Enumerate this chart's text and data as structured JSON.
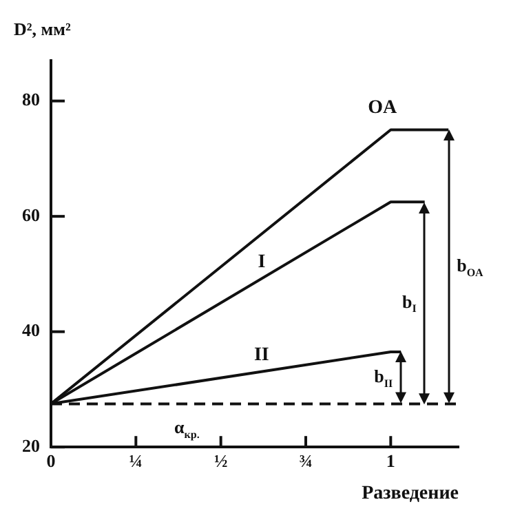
{
  "chart_data": {
    "type": "line",
    "ylabel": "D², мм²",
    "xlabel": "Разведение",
    "xlim": [
      0,
      1.2
    ],
    "ylim": [
      20,
      87
    ],
    "xticks": [
      0,
      {
        "value": 0.25,
        "label": "¼"
      },
      {
        "value": 0.5,
        "label": "½"
      },
      {
        "value": 0.75,
        "label": "¾"
      },
      1
    ],
    "yticks": [
      20,
      40,
      60,
      80
    ],
    "series": [
      {
        "name": "OA",
        "color": "#111111",
        "x": [
          0,
          1,
          1.17
        ],
        "values": [
          27.5,
          75,
          75
        ]
      },
      {
        "name": "I",
        "color": "#111111",
        "x": [
          0,
          1,
          1.1
        ],
        "values": [
          27.5,
          62.5,
          62.5
        ]
      },
      {
        "name": "II",
        "color": "#111111",
        "x": [
          0,
          1,
          1.03
        ],
        "values": [
          27.5,
          36.5,
          36.5
        ]
      }
    ],
    "ref_lines": [
      {
        "axis": "y",
        "value": 27.5,
        "label": "α$_{кр.}$",
        "color": "#111111",
        "line_style": "dashed"
      }
    ],
    "annotations": [
      "b$_{OA}$",
      "b$_{I}$",
      "b$_{II}$"
    ],
    "grid": false,
    "legend": false,
    "marker": "none",
    "line_style": "solid"
  }
}
